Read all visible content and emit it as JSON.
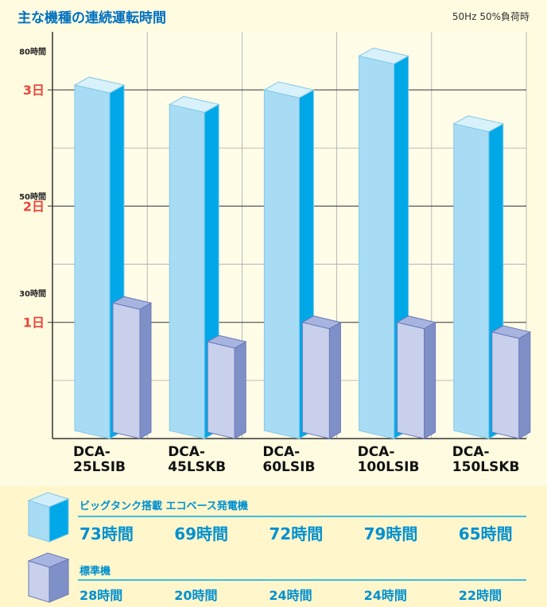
{
  "chart_data": {
    "type": "bar3d",
    "title": "主な機種の連続運転時間",
    "subtitle": "50Hz 50%負荷時",
    "categories": [
      "DCA-\n25LSIB",
      "DCA-\n45LSKB",
      "DCA-\n60LSIB",
      "DCA-\n100LSIB",
      "DCA-\n150LSKB"
    ],
    "series": [
      {
        "name": "ビッグタンク搭載 エコベース発電機",
        "color": "#00a8e8",
        "values": [
          73,
          69,
          72,
          79,
          65
        ],
        "value_labels": [
          "73時間",
          "69時間",
          "72時間",
          "79時間",
          "65時間"
        ]
      },
      {
        "name": "標準機",
        "color": "#7f90c8",
        "values": [
          28,
          20,
          24,
          24,
          22
        ],
        "value_labels": [
          "28時間",
          "20時間",
          "24時間",
          "24時間",
          "22時間"
        ]
      }
    ],
    "ylim": [
      0,
      84
    ],
    "yticks": [
      {
        "value": 24,
        "label": "1日"
      },
      {
        "value": 48,
        "label": "2日"
      },
      {
        "value": 72,
        "label": "3日"
      }
    ],
    "minor_yticks": [
      12,
      36,
      60
    ],
    "hour_labels": [
      {
        "value": 30,
        "label": "30時間"
      },
      {
        "value": 50,
        "label": "50時間"
      },
      {
        "value": 80,
        "label": "80時間"
      }
    ],
    "grid": true
  }
}
